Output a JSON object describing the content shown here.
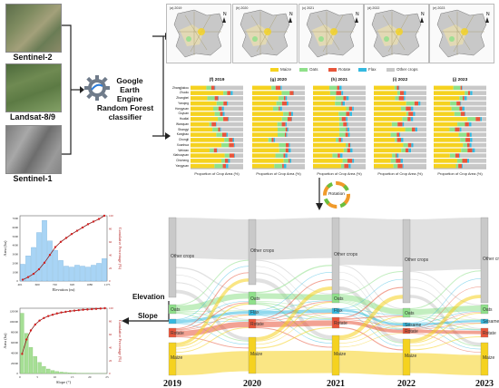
{
  "inputs": {
    "sentinel2": "Sentinel-2",
    "landsat": "Landsat-8/9",
    "sentinel1": "Sentinel-1"
  },
  "processing": {
    "gee": "Google Earth Engine",
    "rf": "Random Forest classifier"
  },
  "map_panels": [
    {
      "tag": "(a) 2019"
    },
    {
      "tag": "(b) 2020"
    },
    {
      "tag": "(c) 2021"
    },
    {
      "tag": "(d) 2022"
    },
    {
      "tag": "(e) 2023"
    }
  ],
  "legend": [
    {
      "label": "Maize",
      "color": "#f5d21f"
    },
    {
      "label": "Oats",
      "color": "#8fe08a"
    },
    {
      "label": "Rotate",
      "color": "#e8553a"
    },
    {
      "label": "Flax",
      "color": "#34b9e0"
    },
    {
      "label": "Other crops",
      "color": "#c8c8c8"
    }
  ],
  "bar_panels": [
    {
      "title": "(f) 2019"
    },
    {
      "title": "(g) 2020"
    },
    {
      "title": "(h) 2021"
    },
    {
      "title": "(i) 2022"
    },
    {
      "title": "(j) 2023"
    }
  ],
  "bar_xlabel": "Proportion of Crop Area (%)",
  "counties": [
    "Zhangjiakou",
    "Zhuolu",
    "Zhangbei",
    "Yanqing",
    "Hongyuan",
    "Guyuan",
    "Huailai",
    "Wanquan",
    "Shangyi",
    "Kangbao",
    "Chongli",
    "Xuanhua",
    "Weixian",
    "Xiahuayuan",
    "Chicheng",
    "Yangyuan"
  ],
  "rotation_label": "Rotation",
  "chart_data": [
    {
      "type": "bar",
      "title": "",
      "xlabel": "Elevation (m)",
      "ylabel": "Area (ha)",
      "y2label": "Cumulative Percentage (%)",
      "x_ticks": [
        "401",
        "600",
        "720",
        "920",
        "1080",
        "1175"
      ],
      "y_ticks": [
        "0",
        "1000",
        "2000",
        "3000",
        "4000",
        "5000",
        "6000",
        "7000"
      ],
      "y2_ticks": [
        "0",
        "20",
        "40",
        "60",
        "80",
        "100"
      ],
      "ylim": [
        0,
        7000
      ],
      "values": [
        1800,
        2700,
        3600,
        5200,
        6500,
        4300,
        3300,
        2200,
        1600,
        1500,
        1700,
        1600,
        1500,
        1700,
        1900,
        2400
      ],
      "cumulative": [
        2,
        6,
        11,
        18,
        28,
        40,
        52,
        60,
        66,
        72,
        77,
        82,
        87,
        91,
        95,
        100
      ]
    },
    {
      "type": "bar",
      "title": "",
      "xlabel": "Slope (°)",
      "ylabel": "Area (ha)",
      "y2label": "Cumulative Percentage (%)",
      "x_ticks": [
        "0",
        "5",
        "10",
        "15",
        "20",
        "25"
      ],
      "y_ticks": [
        "0",
        "20000",
        "40000",
        "60000",
        "80000",
        "100000",
        "120000"
      ],
      "y2_ticks": [
        "0",
        "20",
        "40",
        "60",
        "80",
        "100"
      ],
      "ylim": [
        0,
        130000
      ],
      "values": [
        120000,
        80000,
        52000,
        34000,
        22000,
        14000,
        9000,
        6000,
        4000,
        2800,
        2000,
        1400,
        1000,
        700,
        500,
        350,
        250,
        180,
        120,
        80
      ],
      "cumulative": [
        30,
        52,
        66,
        75,
        81,
        85,
        88,
        90,
        92,
        93.5,
        94.5,
        95.5,
        96.3,
        97,
        97.6,
        98.1,
        98.6,
        99,
        99.5,
        100
      ]
    }
  ],
  "side_labels": {
    "elevation": "Elevation",
    "slope": "Slope"
  },
  "sankey": {
    "years": [
      "2019",
      "2020",
      "2021",
      "2022",
      "2023"
    ],
    "node_labels": {
      "other": "Other crops",
      "oats": "Oats",
      "flax": "Flax",
      "rotate": "Rotate",
      "maize": "Maize",
      "sesame": "Sesame"
    }
  }
}
